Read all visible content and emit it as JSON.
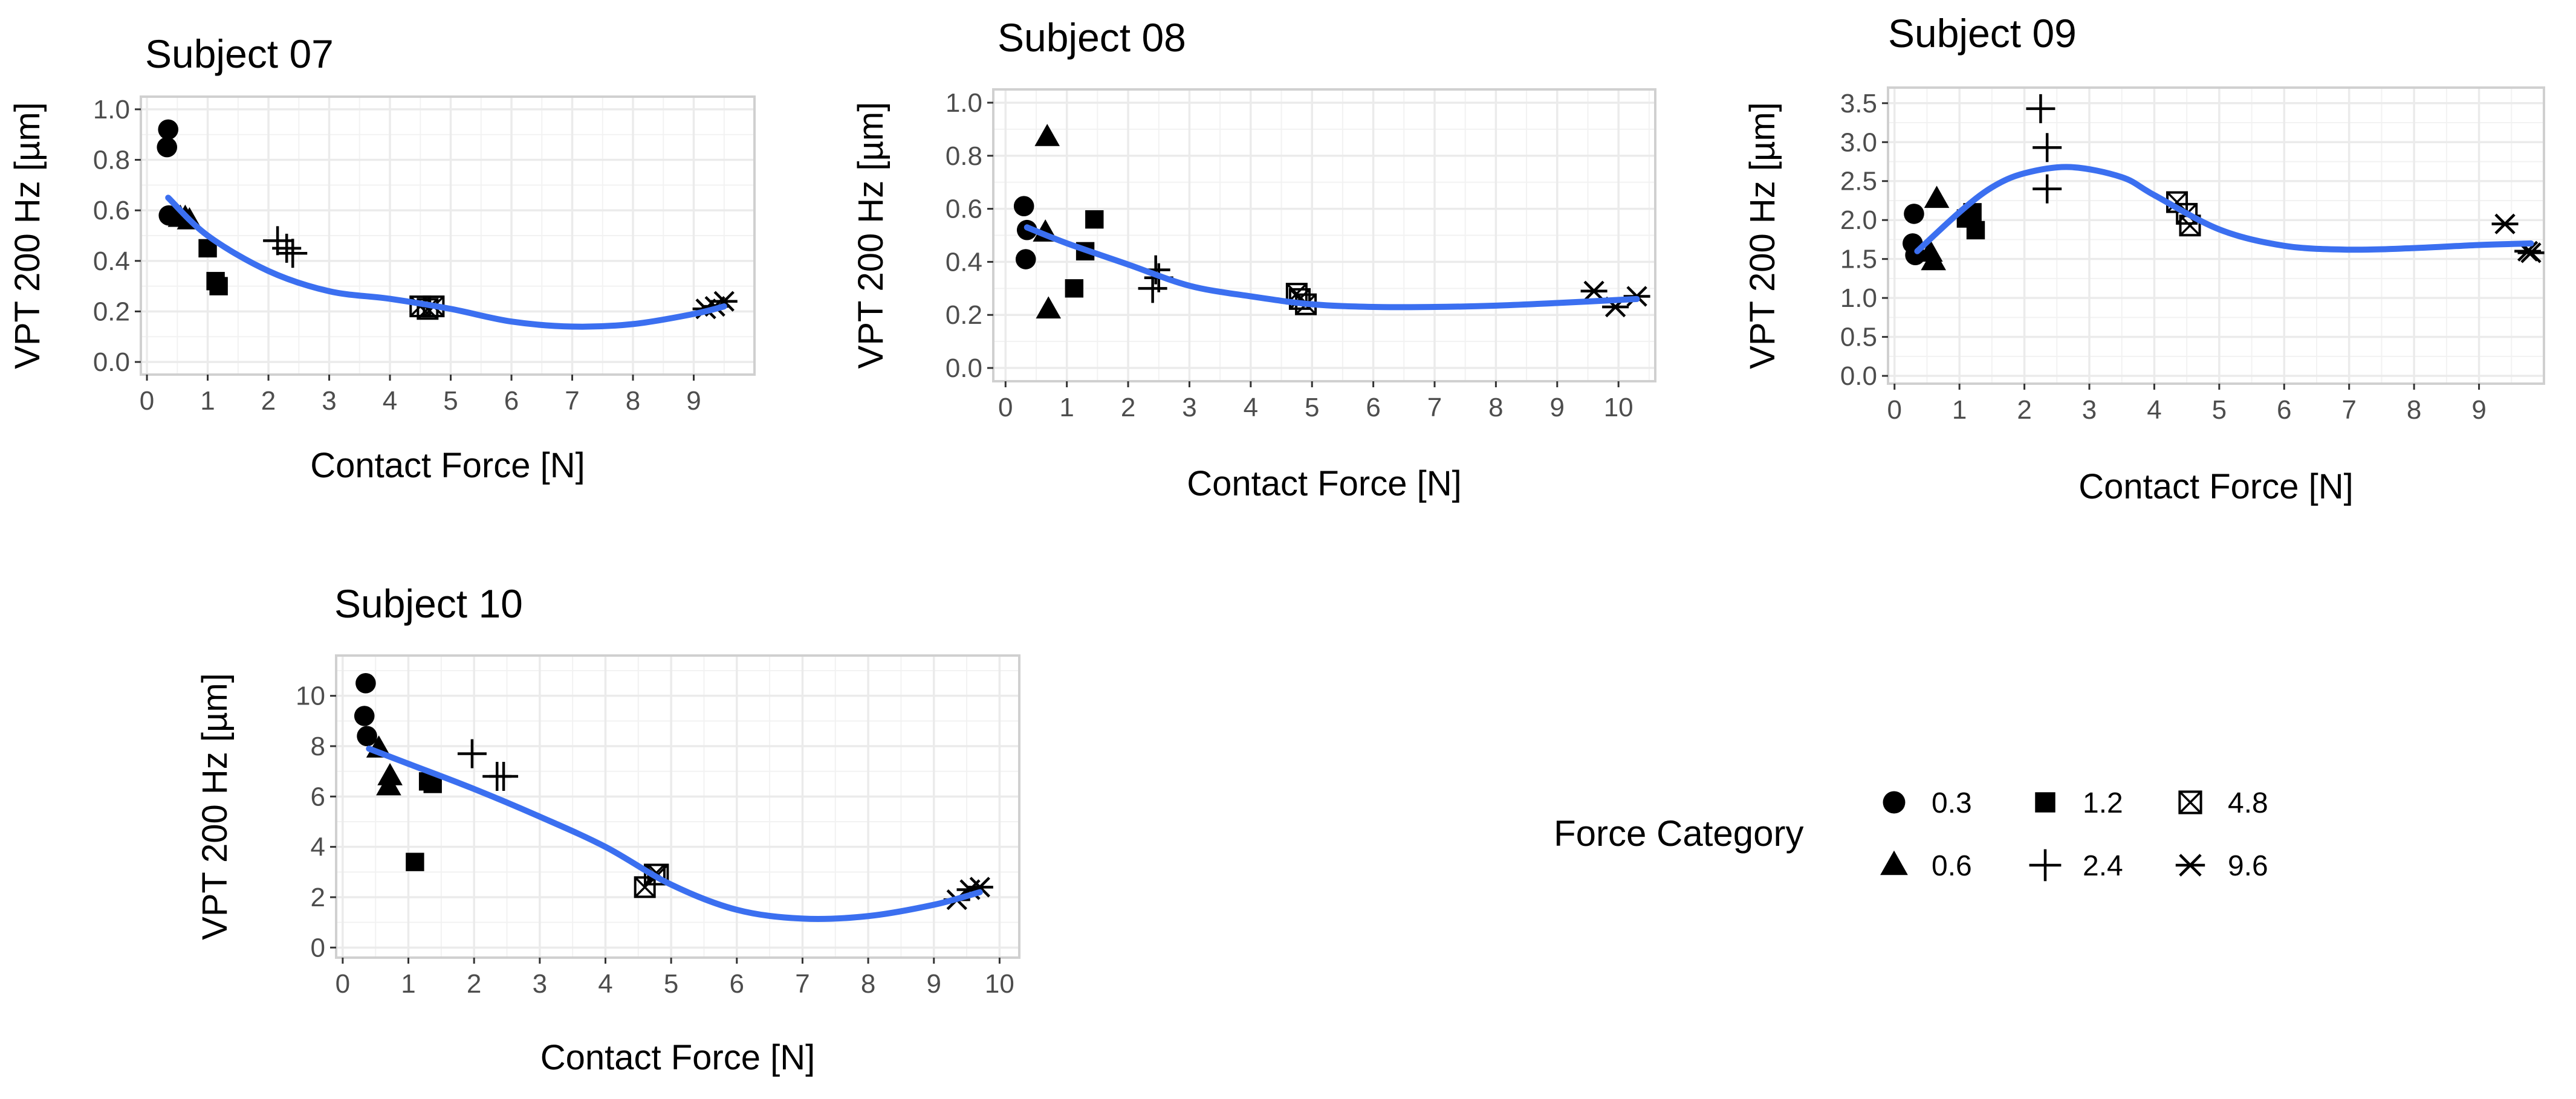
{
  "legend": {
    "title": "Force Category",
    "items": [
      {
        "label": "0.3",
        "shape": "circle"
      },
      {
        "label": "0.6",
        "shape": "triangle"
      },
      {
        "label": "1.2",
        "shape": "square"
      },
      {
        "label": "2.4",
        "shape": "plus"
      },
      {
        "label": "4.8",
        "shape": "boxed-x"
      },
      {
        "label": "9.6",
        "shape": "asterisk"
      }
    ]
  },
  "colors": {
    "smooth_line": "#3B6FF0",
    "points": "#000000",
    "panel_grid": "#EBEBEB",
    "panel_border": "#D0D0D0"
  },
  "chart_data": [
    {
      "type": "scatter",
      "title": "Subject 07",
      "xlabel": "Contact Force [N]",
      "ylabel": "VPT 200 Hz [µm]",
      "xlim": [
        -0.1,
        10.0
      ],
      "ylim": [
        -0.05,
        1.05
      ],
      "xticks": [
        0,
        1,
        2,
        3,
        4,
        5,
        6,
        7,
        8,
        9
      ],
      "yticks": [
        0.0,
        0.2,
        0.4,
        0.6,
        0.8,
        1.0
      ],
      "grid": true,
      "points": [
        {
          "x": 0.35,
          "y": 0.92,
          "category": "0.3"
        },
        {
          "x": 0.33,
          "y": 0.85,
          "category": "0.3"
        },
        {
          "x": 0.36,
          "y": 0.58,
          "category": "0.3"
        },
        {
          "x": 0.55,
          "y": 0.57,
          "category": "0.6"
        },
        {
          "x": 0.63,
          "y": 0.57,
          "category": "0.6"
        },
        {
          "x": 0.7,
          "y": 0.56,
          "category": "0.6"
        },
        {
          "x": 1.0,
          "y": 0.45,
          "category": "1.2"
        },
        {
          "x": 1.13,
          "y": 0.32,
          "category": "1.2"
        },
        {
          "x": 1.18,
          "y": 0.3,
          "category": "1.2"
        },
        {
          "x": 2.15,
          "y": 0.48,
          "category": "2.4"
        },
        {
          "x": 2.4,
          "y": 0.43,
          "category": "2.4"
        },
        {
          "x": 2.3,
          "y": 0.45,
          "category": "2.4"
        },
        {
          "x": 4.5,
          "y": 0.22,
          "category": "4.8"
        },
        {
          "x": 4.62,
          "y": 0.21,
          "category": "4.8"
        },
        {
          "x": 4.72,
          "y": 0.22,
          "category": "4.8"
        },
        {
          "x": 9.2,
          "y": 0.21,
          "category": "9.6"
        },
        {
          "x": 9.35,
          "y": 0.22,
          "category": "9.6"
        },
        {
          "x": 9.5,
          "y": 0.24,
          "category": "9.6"
        }
      ],
      "smooth": [
        [
          0.35,
          0.65
        ],
        [
          1.0,
          0.5
        ],
        [
          2.0,
          0.36
        ],
        [
          3.0,
          0.28
        ],
        [
          4.0,
          0.25
        ],
        [
          5.0,
          0.21
        ],
        [
          6.0,
          0.16
        ],
        [
          7.0,
          0.14
        ],
        [
          8.0,
          0.15
        ],
        [
          9.0,
          0.19
        ],
        [
          9.5,
          0.22
        ]
      ]
    },
    {
      "type": "scatter",
      "title": "Subject 08",
      "xlabel": "Contact Force [N]",
      "ylabel": "VPT 200 Hz [µm]",
      "xlim": [
        -0.2,
        10.6
      ],
      "ylim": [
        -0.05,
        1.05
      ],
      "xticks": [
        0,
        1,
        2,
        3,
        4,
        5,
        6,
        7,
        8,
        9,
        10
      ],
      "yticks": [
        0.0,
        0.2,
        0.4,
        0.6,
        0.8,
        1.0
      ],
      "grid": true,
      "points": [
        {
          "x": 0.3,
          "y": 0.61,
          "category": "0.3"
        },
        {
          "x": 0.35,
          "y": 0.52,
          "category": "0.3"
        },
        {
          "x": 0.33,
          "y": 0.41,
          "category": "0.3"
        },
        {
          "x": 0.68,
          "y": 0.87,
          "category": "0.6"
        },
        {
          "x": 0.65,
          "y": 0.51,
          "category": "0.6"
        },
        {
          "x": 0.7,
          "y": 0.22,
          "category": "0.6"
        },
        {
          "x": 1.45,
          "y": 0.56,
          "category": "1.2"
        },
        {
          "x": 1.3,
          "y": 0.44,
          "category": "1.2"
        },
        {
          "x": 1.12,
          "y": 0.3,
          "category": "1.2"
        },
        {
          "x": 2.45,
          "y": 0.37,
          "category": "2.4"
        },
        {
          "x": 2.4,
          "y": 0.3,
          "category": "2.4"
        },
        {
          "x": 2.5,
          "y": 0.34,
          "category": "2.4"
        },
        {
          "x": 4.75,
          "y": 0.28,
          "category": "4.8"
        },
        {
          "x": 4.9,
          "y": 0.24,
          "category": "4.8"
        },
        {
          "x": 4.8,
          "y": 0.26,
          "category": "4.8"
        },
        {
          "x": 9.6,
          "y": 0.29,
          "category": "9.6"
        },
        {
          "x": 9.95,
          "y": 0.23,
          "category": "9.6"
        },
        {
          "x": 10.3,
          "y": 0.27,
          "category": "9.6"
        }
      ],
      "smooth": [
        [
          0.35,
          0.53
        ],
        [
          1.0,
          0.47
        ],
        [
          2.0,
          0.39
        ],
        [
          3.0,
          0.31
        ],
        [
          4.0,
          0.27
        ],
        [
          5.0,
          0.24
        ],
        [
          6.0,
          0.23
        ],
        [
          7.0,
          0.23
        ],
        [
          8.0,
          0.235
        ],
        [
          9.0,
          0.245
        ],
        [
          10.3,
          0.26
        ]
      ]
    },
    {
      "type": "scatter",
      "title": "Subject 09",
      "xlabel": "Contact Force [N]",
      "ylabel": "VPT 200 Hz [µm]",
      "xlim": [
        -0.1,
        10.0
      ],
      "ylim": [
        -0.1,
        3.7
      ],
      "xticks": [
        0,
        1,
        2,
        3,
        4,
        5,
        6,
        7,
        8,
        9
      ],
      "yticks": [
        0.0,
        0.5,
        1.0,
        1.5,
        2.0,
        2.5,
        3.0,
        3.5
      ],
      "grid": true,
      "points": [
        {
          "x": 0.3,
          "y": 2.08,
          "category": "0.3"
        },
        {
          "x": 0.28,
          "y": 1.7,
          "category": "0.3"
        },
        {
          "x": 0.32,
          "y": 1.55,
          "category": "0.3"
        },
        {
          "x": 0.65,
          "y": 2.27,
          "category": "0.6"
        },
        {
          "x": 0.55,
          "y": 1.58,
          "category": "0.6"
        },
        {
          "x": 0.6,
          "y": 1.47,
          "category": "0.6"
        },
        {
          "x": 1.1,
          "y": 2.02,
          "category": "1.2"
        },
        {
          "x": 1.2,
          "y": 2.1,
          "category": "1.2"
        },
        {
          "x": 1.25,
          "y": 1.87,
          "category": "1.2"
        },
        {
          "x": 2.25,
          "y": 3.43,
          "category": "2.4"
        },
        {
          "x": 2.35,
          "y": 2.93,
          "category": "2.4"
        },
        {
          "x": 2.35,
          "y": 2.4,
          "category": "2.4"
        },
        {
          "x": 4.35,
          "y": 2.23,
          "category": "4.8"
        },
        {
          "x": 4.5,
          "y": 2.08,
          "category": "4.8"
        },
        {
          "x": 4.55,
          "y": 1.93,
          "category": "4.8"
        },
        {
          "x": 9.4,
          "y": 1.95,
          "category": "9.6"
        },
        {
          "x": 9.75,
          "y": 1.6,
          "category": "9.6"
        },
        {
          "x": 9.8,
          "y": 1.58,
          "category": "9.6"
        }
      ],
      "smooth": [
        [
          0.35,
          1.6
        ],
        [
          1.0,
          2.1
        ],
        [
          1.5,
          2.42
        ],
        [
          2.0,
          2.6
        ],
        [
          2.7,
          2.68
        ],
        [
          3.5,
          2.55
        ],
        [
          4.0,
          2.32
        ],
        [
          5.0,
          1.88
        ],
        [
          6.0,
          1.67
        ],
        [
          7.0,
          1.62
        ],
        [
          8.0,
          1.64
        ],
        [
          9.0,
          1.68
        ],
        [
          9.8,
          1.7
        ]
      ]
    },
    {
      "type": "scatter",
      "title": "Subject 10",
      "xlabel": "Contact Force [N]",
      "ylabel": "VPT 200 Hz [µm]",
      "xlim": [
        -0.1,
        10.3
      ],
      "ylim": [
        -0.4,
        11.6
      ],
      "xticks": [
        0,
        1,
        2,
        3,
        4,
        5,
        6,
        7,
        8,
        9,
        10
      ],
      "yticks": [
        0,
        2,
        4,
        6,
        8,
        10
      ],
      "grid": true,
      "points": [
        {
          "x": 0.35,
          "y": 10.5,
          "category": "0.3"
        },
        {
          "x": 0.33,
          "y": 9.2,
          "category": "0.3"
        },
        {
          "x": 0.37,
          "y": 8.4,
          "category": "0.3"
        },
        {
          "x": 0.55,
          "y": 7.9,
          "category": "0.6"
        },
        {
          "x": 0.72,
          "y": 6.8,
          "category": "0.6"
        },
        {
          "x": 0.7,
          "y": 6.4,
          "category": "0.6"
        },
        {
          "x": 1.1,
          "y": 3.4,
          "category": "1.2"
        },
        {
          "x": 1.3,
          "y": 6.6,
          "category": "1.2"
        },
        {
          "x": 1.37,
          "y": 6.5,
          "category": "1.2"
        },
        {
          "x": 1.97,
          "y": 7.7,
          "category": "2.4"
        },
        {
          "x": 2.35,
          "y": 6.8,
          "category": "2.4"
        },
        {
          "x": 2.45,
          "y": 6.8,
          "category": "2.4"
        },
        {
          "x": 4.6,
          "y": 2.4,
          "category": "4.8"
        },
        {
          "x": 4.75,
          "y": 2.9,
          "category": "4.8"
        },
        {
          "x": 4.8,
          "y": 2.9,
          "category": "4.8"
        },
        {
          "x": 9.35,
          "y": 1.9,
          "category": "9.6"
        },
        {
          "x": 9.55,
          "y": 2.3,
          "category": "9.6"
        },
        {
          "x": 9.7,
          "y": 2.4,
          "category": "9.6"
        }
      ],
      "smooth": [
        [
          0.4,
          7.9
        ],
        [
          1.0,
          7.3
        ],
        [
          2.0,
          6.3
        ],
        [
          3.0,
          5.2
        ],
        [
          4.0,
          4.0
        ],
        [
          5.0,
          2.5
        ],
        [
          6.0,
          1.5
        ],
        [
          7.0,
          1.15
        ],
        [
          8.0,
          1.25
        ],
        [
          9.0,
          1.7
        ],
        [
          9.7,
          2.2
        ]
      ]
    }
  ]
}
